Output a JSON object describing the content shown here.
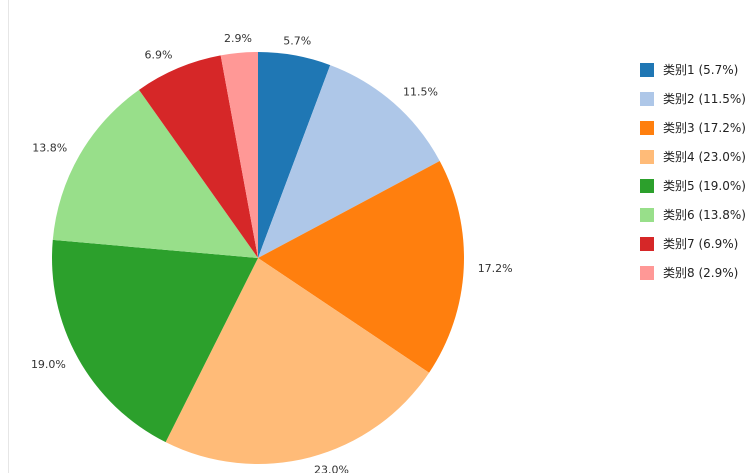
{
  "chart_data": {
    "type": "pie",
    "title": "",
    "start": "top",
    "direction": "clockwise",
    "legend_position": "right",
    "categories": [
      "类别1",
      "类别2",
      "类别3",
      "类别4",
      "类别5",
      "类别6",
      "类别7",
      "类别8"
    ],
    "values": [
      5.7,
      11.5,
      17.2,
      23.0,
      19.0,
      13.8,
      6.9,
      2.9
    ],
    "labels": [
      "5.7%",
      "11.5%",
      "17.2%",
      "23.0%",
      "19.0%",
      "13.8%",
      "6.9%",
      "2.9%"
    ],
    "legend": [
      "类别1 (5.7%)",
      "类别2 (11.5%)",
      "类别3 (17.2%)",
      "类别4 (23.0%)",
      "类别5 (19.0%)",
      "类别6 (13.8%)",
      "类别7 (6.9%)",
      "类别8 (2.9%)"
    ],
    "colors": [
      "#1f77b4",
      "#aec7e8",
      "#ff7f0e",
      "#ffbb78",
      "#2ca02c",
      "#98df8a",
      "#d62728",
      "#ff9896"
    ]
  }
}
